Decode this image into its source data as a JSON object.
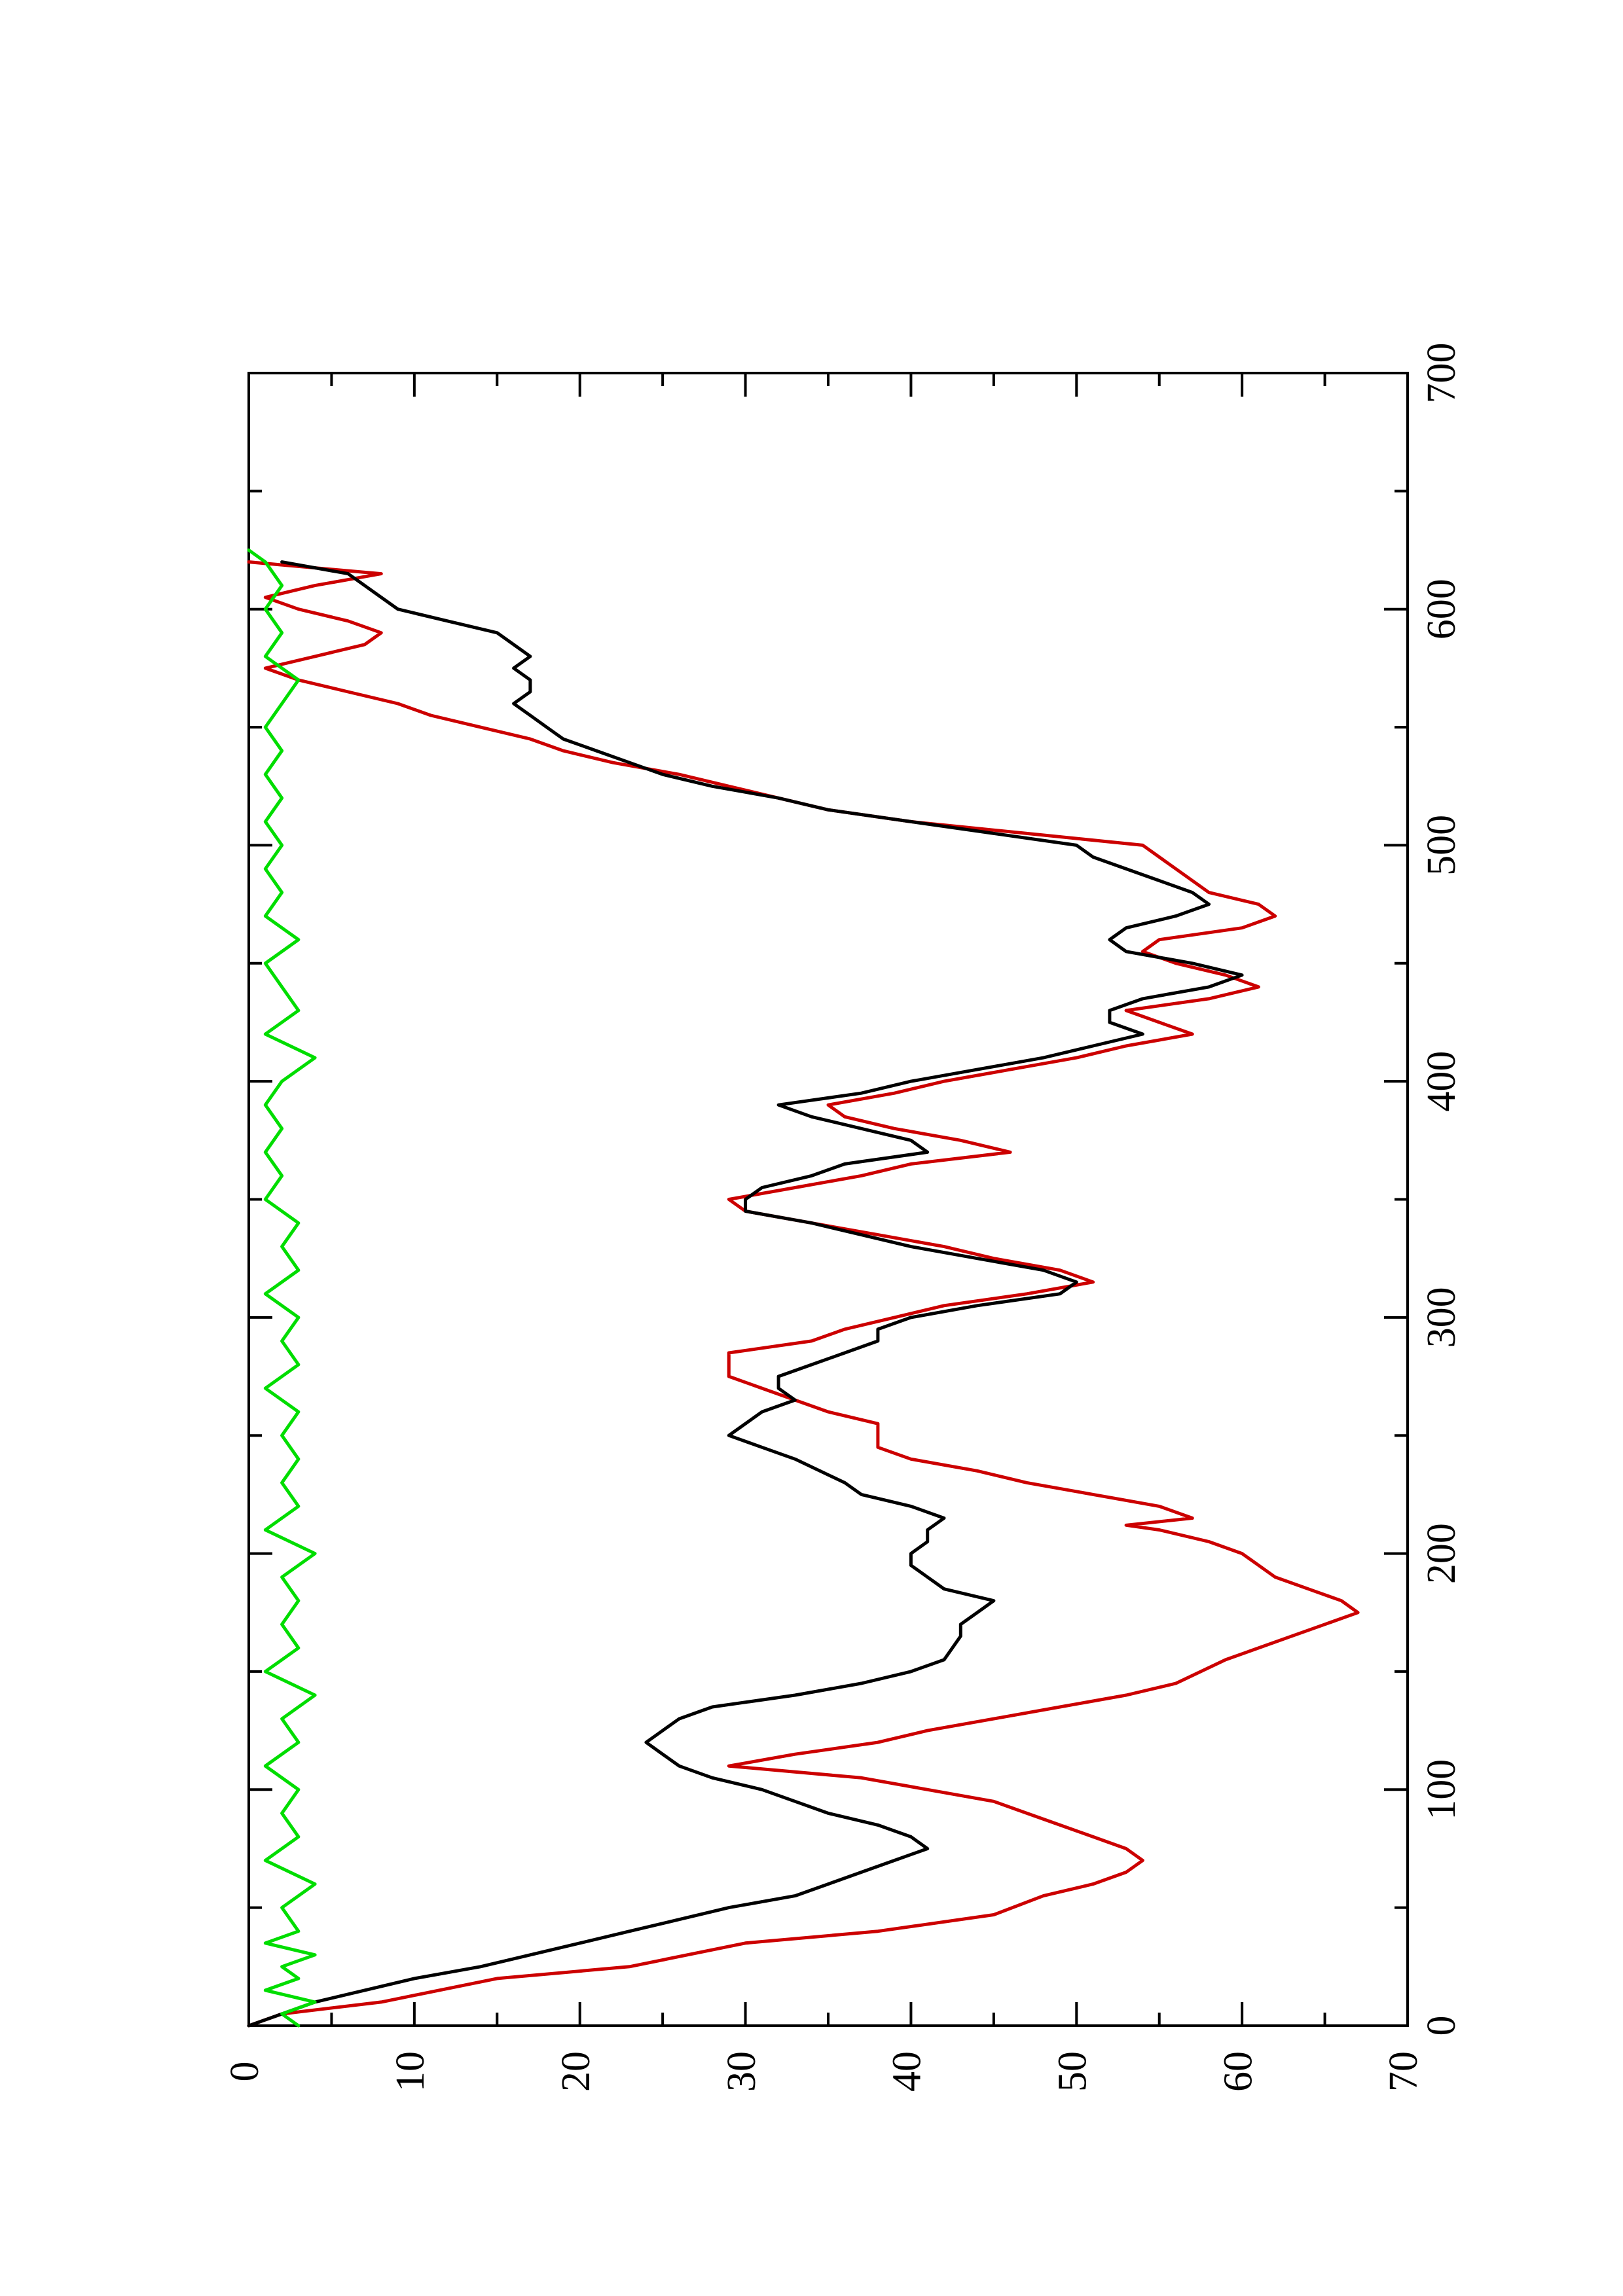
{
  "chart_data": {
    "type": "line",
    "orientation": "rotated-90-ccw",
    "title": "",
    "xlabel": "",
    "ylabel": "",
    "xlim": [
      0,
      700
    ],
    "ylim": [
      0,
      70
    ],
    "x_major_ticks": [
      0,
      100,
      200,
      300,
      400,
      500,
      600,
      700
    ],
    "x_tick_labels": [
      "0",
      "100",
      "200",
      "300",
      "400",
      "500",
      "600",
      "700"
    ],
    "x_minor_ticks": [
      50,
      150,
      250,
      350,
      450,
      550,
      650
    ],
    "y_major_ticks": [
      0,
      10,
      20,
      30,
      40,
      50,
      60,
      70
    ],
    "y_tick_labels": [
      "0",
      "10",
      "20",
      "30",
      "40",
      "50",
      "60",
      "70"
    ],
    "y_minor_ticks": [
      5,
      15,
      25,
      35,
      45,
      55,
      65
    ],
    "grid": false,
    "legend": "none",
    "series": [
      {
        "color": "#cc0000",
        "line_shape": "stepped",
        "points": [
          [
            0,
            0
          ],
          [
            5,
            2
          ],
          [
            10,
            8
          ],
          [
            20,
            15
          ],
          [
            25,
            23
          ],
          [
            35,
            30
          ],
          [
            40,
            38
          ],
          [
            47,
            45
          ],
          [
            55,
            48
          ],
          [
            60,
            51
          ],
          [
            65,
            53
          ],
          [
            70,
            54
          ],
          [
            75,
            53
          ],
          [
            80,
            51
          ],
          [
            85,
            49
          ],
          [
            90,
            47
          ],
          [
            95,
            45
          ],
          [
            100,
            41
          ],
          [
            105,
            37
          ],
          [
            110,
            29
          ],
          [
            115,
            33
          ],
          [
            120,
            38
          ],
          [
            125,
            41
          ],
          [
            130,
            45
          ],
          [
            135,
            49
          ],
          [
            140,
            53
          ],
          [
            145,
            56
          ],
          [
            155,
            59
          ],
          [
            165,
            63
          ],
          [
            170,
            65
          ],
          [
            175,
            67
          ],
          [
            180,
            66
          ],
          [
            185,
            64
          ],
          [
            190,
            62
          ],
          [
            200,
            60
          ],
          [
            205,
            58
          ],
          [
            210,
            55
          ],
          [
            212,
            53
          ],
          [
            215,
            57
          ],
          [
            220,
            55
          ],
          [
            225,
            51
          ],
          [
            230,
            47
          ],
          [
            235,
            44
          ],
          [
            240,
            40
          ],
          [
            245,
            38
          ],
          [
            255,
            38
          ],
          [
            260,
            35
          ],
          [
            265,
            33
          ],
          [
            270,
            31
          ],
          [
            275,
            29
          ],
          [
            285,
            29
          ],
          [
            290,
            34
          ],
          [
            295,
            36
          ],
          [
            300,
            39
          ],
          [
            305,
            42
          ],
          [
            310,
            47
          ],
          [
            315,
            51
          ],
          [
            320,
            49
          ],
          [
            325,
            45
          ],
          [
            330,
            42
          ],
          [
            335,
            38
          ],
          [
            340,
            34
          ],
          [
            345,
            30
          ],
          [
            350,
            29
          ],
          [
            355,
            33
          ],
          [
            360,
            37
          ],
          [
            365,
            40
          ],
          [
            370,
            46
          ],
          [
            375,
            43
          ],
          [
            380,
            39
          ],
          [
            385,
            36
          ],
          [
            390,
            35
          ],
          [
            395,
            39
          ],
          [
            400,
            42
          ],
          [
            405,
            46
          ],
          [
            410,
            50
          ],
          [
            415,
            53
          ],
          [
            420,
            57
          ],
          [
            425,
            55
          ],
          [
            430,
            53
          ],
          [
            435,
            58
          ],
          [
            440,
            61
          ],
          [
            445,
            59
          ],
          [
            450,
            56
          ],
          [
            455,
            54
          ],
          [
            460,
            55
          ],
          [
            465,
            60
          ],
          [
            470,
            62
          ],
          [
            475,
            61
          ],
          [
            480,
            58
          ],
          [
            490,
            56
          ],
          [
            500,
            54
          ],
          [
            505,
            47
          ],
          [
            510,
            40
          ],
          [
            515,
            35
          ],
          [
            520,
            32
          ],
          [
            525,
            29
          ],
          [
            530,
            26
          ],
          [
            535,
            22
          ],
          [
            540,
            19
          ],
          [
            545,
            17
          ],
          [
            550,
            14
          ],
          [
            555,
            11
          ],
          [
            560,
            9
          ],
          [
            565,
            6
          ],
          [
            570,
            3
          ],
          [
            575,
            1
          ],
          [
            580,
            4
          ],
          [
            585,
            7
          ],
          [
            590,
            8
          ],
          [
            595,
            6
          ],
          [
            600,
            3
          ],
          [
            605,
            1
          ],
          [
            610,
            4
          ],
          [
            615,
            8
          ],
          [
            620,
            0
          ]
        ]
      },
      {
        "color": "#000000",
        "line_shape": "jagged",
        "points": [
          [
            0,
            0
          ],
          [
            5,
            2
          ],
          [
            10,
            4
          ],
          [
            15,
            7
          ],
          [
            20,
            10
          ],
          [
            25,
            14
          ],
          [
            30,
            17
          ],
          [
            35,
            20
          ],
          [
            40,
            23
          ],
          [
            45,
            26
          ],
          [
            50,
            29
          ],
          [
            55,
            33
          ],
          [
            60,
            35
          ],
          [
            65,
            37
          ],
          [
            70,
            39
          ],
          [
            75,
            41
          ],
          [
            80,
            40
          ],
          [
            85,
            38
          ],
          [
            90,
            35
          ],
          [
            95,
            33
          ],
          [
            100,
            31
          ],
          [
            105,
            28
          ],
          [
            110,
            26
          ],
          [
            115,
            25
          ],
          [
            120,
            24
          ],
          [
            125,
            25
          ],
          [
            130,
            26
          ],
          [
            135,
            28
          ],
          [
            140,
            33
          ],
          [
            145,
            37
          ],
          [
            150,
            40
          ],
          [
            155,
            42
          ],
          [
            165,
            43
          ],
          [
            170,
            43
          ],
          [
            175,
            44
          ],
          [
            180,
            45
          ],
          [
            185,
            42
          ],
          [
            190,
            41
          ],
          [
            195,
            40
          ],
          [
            200,
            40
          ],
          [
            205,
            41
          ],
          [
            210,
            41
          ],
          [
            215,
            42
          ],
          [
            220,
            40
          ],
          [
            225,
            37
          ],
          [
            230,
            36
          ],
          [
            240,
            33
          ],
          [
            245,
            31
          ],
          [
            250,
            29
          ],
          [
            255,
            30
          ],
          [
            260,
            31
          ],
          [
            265,
            33
          ],
          [
            270,
            32
          ],
          [
            275,
            32
          ],
          [
            280,
            34
          ],
          [
            285,
            36
          ],
          [
            290,
            38
          ],
          [
            295,
            38
          ],
          [
            300,
            40
          ],
          [
            305,
            44
          ],
          [
            310,
            49
          ],
          [
            315,
            50
          ],
          [
            320,
            48
          ],
          [
            325,
            44
          ],
          [
            330,
            40
          ],
          [
            335,
            37
          ],
          [
            340,
            34
          ],
          [
            345,
            30
          ],
          [
            350,
            30
          ],
          [
            355,
            31
          ],
          [
            360,
            34
          ],
          [
            365,
            36
          ],
          [
            370,
            41
          ],
          [
            375,
            40
          ],
          [
            380,
            37
          ],
          [
            385,
            34
          ],
          [
            390,
            32
          ],
          [
            395,
            37
          ],
          [
            400,
            40
          ],
          [
            405,
            44
          ],
          [
            410,
            48
          ],
          [
            415,
            51
          ],
          [
            420,
            54
          ],
          [
            425,
            52
          ],
          [
            430,
            52
          ],
          [
            435,
            54
          ],
          [
            440,
            58
          ],
          [
            445,
            60
          ],
          [
            450,
            57
          ],
          [
            455,
            53
          ],
          [
            460,
            52
          ],
          [
            465,
            53
          ],
          [
            470,
            56
          ],
          [
            475,
            58
          ],
          [
            480,
            57
          ],
          [
            485,
            55
          ],
          [
            490,
            53
          ],
          [
            495,
            51
          ],
          [
            500,
            50
          ],
          [
            505,
            45
          ],
          [
            510,
            40
          ],
          [
            515,
            35
          ],
          [
            520,
            32
          ],
          [
            525,
            28
          ],
          [
            530,
            25
          ],
          [
            535,
            23
          ],
          [
            540,
            21
          ],
          [
            545,
            19
          ],
          [
            550,
            18
          ],
          [
            555,
            17
          ],
          [
            560,
            16
          ],
          [
            565,
            17
          ],
          [
            570,
            17
          ],
          [
            575,
            16
          ],
          [
            580,
            17
          ],
          [
            585,
            16
          ],
          [
            590,
            15
          ],
          [
            595,
            12
          ],
          [
            600,
            9
          ],
          [
            605,
            8
          ],
          [
            610,
            7
          ],
          [
            615,
            6
          ],
          [
            620,
            2
          ]
        ]
      },
      {
        "color": "#00dd00",
        "line_shape": "noisy",
        "points": [
          [
            0,
            3
          ],
          [
            5,
            2
          ],
          [
            10,
            4
          ],
          [
            15,
            1
          ],
          [
            20,
            3
          ],
          [
            25,
            2
          ],
          [
            30,
            4
          ],
          [
            35,
            1
          ],
          [
            40,
            3
          ],
          [
            50,
            2
          ],
          [
            60,
            4
          ],
          [
            70,
            1
          ],
          [
            80,
            3
          ],
          [
            90,
            2
          ],
          [
            100,
            3
          ],
          [
            110,
            1
          ],
          [
            120,
            3
          ],
          [
            130,
            2
          ],
          [
            140,
            4
          ],
          [
            150,
            1
          ],
          [
            160,
            3
          ],
          [
            170,
            2
          ],
          [
            180,
            3
          ],
          [
            190,
            2
          ],
          [
            200,
            4
          ],
          [
            210,
            1
          ],
          [
            220,
            3
          ],
          [
            230,
            2
          ],
          [
            240,
            3
          ],
          [
            250,
            2
          ],
          [
            260,
            3
          ],
          [
            270,
            1
          ],
          [
            280,
            3
          ],
          [
            290,
            2
          ],
          [
            300,
            3
          ],
          [
            310,
            1
          ],
          [
            320,
            3
          ],
          [
            330,
            2
          ],
          [
            340,
            3
          ],
          [
            350,
            1
          ],
          [
            360,
            2
          ],
          [
            370,
            1
          ],
          [
            380,
            2
          ],
          [
            390,
            1
          ],
          [
            400,
            2
          ],
          [
            410,
            4
          ],
          [
            420,
            1
          ],
          [
            430,
            3
          ],
          [
            440,
            2
          ],
          [
            450,
            1
          ],
          [
            460,
            3
          ],
          [
            470,
            1
          ],
          [
            480,
            2
          ],
          [
            490,
            1
          ],
          [
            500,
            2
          ],
          [
            510,
            1
          ],
          [
            520,
            2
          ],
          [
            530,
            1
          ],
          [
            540,
            2
          ],
          [
            550,
            1
          ],
          [
            560,
            2
          ],
          [
            570,
            3
          ],
          [
            580,
            1
          ],
          [
            590,
            2
          ],
          [
            600,
            1
          ],
          [
            610,
            2
          ],
          [
            620,
            1
          ],
          [
            625,
            0
          ]
        ]
      }
    ]
  }
}
